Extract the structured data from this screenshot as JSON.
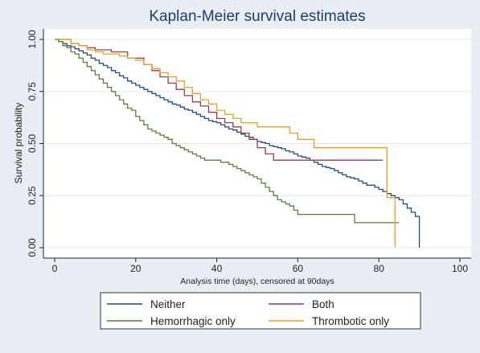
{
  "chart_data": {
    "type": "line",
    "step": true,
    "title": "Kaplan-Meier survival estimates",
    "xlabel": "Analysis time (days), censored at 90days",
    "ylabel": "Survival probability",
    "xlim": [
      0,
      100
    ],
    "ylim": [
      0,
      1
    ],
    "xticks": [
      0,
      20,
      40,
      60,
      80,
      100
    ],
    "xtick_labels": [
      "0",
      "20",
      "40",
      "60",
      "80",
      "100"
    ],
    "yticks": [
      0,
      0.25,
      0.5,
      0.75,
      1
    ],
    "ytick_labels": [
      "0.00",
      "0.25",
      "0.50",
      "0.75",
      "1.00"
    ],
    "grid": true,
    "legend_position": "bottom",
    "series": [
      {
        "name": "Neither",
        "color": "#1f4e79",
        "x": [
          0,
          1,
          2,
          3,
          4,
          5,
          6,
          7,
          8,
          9,
          10,
          11,
          12,
          13,
          14,
          15,
          16,
          17,
          18,
          19,
          20,
          21,
          22,
          23,
          24,
          25,
          26,
          27,
          28,
          29,
          30,
          31,
          32,
          33,
          34,
          35,
          36,
          37,
          38,
          39,
          40,
          41,
          42,
          43,
          44,
          45,
          46,
          47,
          48,
          49,
          50,
          51,
          52,
          53,
          54,
          55,
          56,
          57,
          58,
          59,
          60,
          61,
          62,
          63,
          64,
          65,
          66,
          67,
          68,
          69,
          70,
          71,
          72,
          73,
          74,
          75,
          76,
          77,
          78,
          79,
          80,
          81,
          82,
          83,
          84,
          85,
          86,
          87,
          88,
          89,
          90
        ],
        "y": [
          1.0,
          0.99,
          0.98,
          0.97,
          0.965,
          0.955,
          0.945,
          0.935,
          0.925,
          0.91,
          0.9,
          0.885,
          0.875,
          0.865,
          0.85,
          0.84,
          0.825,
          0.815,
          0.8,
          0.79,
          0.78,
          0.77,
          0.76,
          0.75,
          0.74,
          0.73,
          0.72,
          0.71,
          0.7,
          0.69,
          0.685,
          0.675,
          0.665,
          0.66,
          0.65,
          0.64,
          0.63,
          0.62,
          0.61,
          0.605,
          0.6,
          0.59,
          0.58,
          0.57,
          0.565,
          0.555,
          0.545,
          0.535,
          0.53,
          0.52,
          0.51,
          0.505,
          0.5,
          0.49,
          0.485,
          0.48,
          0.475,
          0.465,
          0.46,
          0.45,
          0.44,
          0.435,
          0.43,
          0.42,
          0.41,
          0.4,
          0.39,
          0.385,
          0.38,
          0.37,
          0.36,
          0.35,
          0.34,
          0.335,
          0.33,
          0.32,
          0.31,
          0.3,
          0.3,
          0.29,
          0.28,
          0.27,
          0.26,
          0.25,
          0.24,
          0.23,
          0.21,
          0.19,
          0.17,
          0.15,
          0.0
        ]
      },
      {
        "name": "Both",
        "color": "#9e3a4a",
        "x": [
          0,
          2,
          4,
          6,
          8,
          10,
          12,
          14,
          16,
          18,
          20,
          22,
          24,
          26,
          28,
          30,
          32,
          34,
          36,
          38,
          40,
          42,
          44,
          46,
          48,
          50,
          52,
          54,
          56,
          58,
          60,
          65,
          70,
          75,
          81
        ],
        "y": [
          1.0,
          1.0,
          0.98,
          0.97,
          0.96,
          0.95,
          0.95,
          0.94,
          0.94,
          0.91,
          0.91,
          0.88,
          0.85,
          0.82,
          0.79,
          0.76,
          0.73,
          0.7,
          0.68,
          0.65,
          0.62,
          0.6,
          0.58,
          0.55,
          0.52,
          0.48,
          0.45,
          0.42,
          0.42,
          0.42,
          0.42,
          0.42,
          0.42,
          0.42,
          0.42
        ]
      },
      {
        "name": "Hemorrhagic only",
        "color": "#5a7f3a",
        "x": [
          0,
          1,
          2,
          3,
          4,
          5,
          6,
          7,
          8,
          9,
          10,
          11,
          12,
          13,
          14,
          15,
          16,
          17,
          18,
          19,
          20,
          21,
          22,
          23,
          24,
          25,
          26,
          27,
          28,
          29,
          30,
          31,
          32,
          33,
          34,
          35,
          36,
          37,
          38,
          39,
          40,
          41,
          42,
          43,
          44,
          45,
          46,
          47,
          48,
          49,
          50,
          51,
          52,
          53,
          54,
          55,
          56,
          57,
          58,
          59,
          60,
          62,
          64,
          66,
          68,
          70,
          72,
          74,
          76,
          78,
          80,
          82,
          84,
          85
        ],
        "y": [
          1.0,
          0.99,
          0.97,
          0.96,
          0.94,
          0.93,
          0.91,
          0.89,
          0.87,
          0.85,
          0.83,
          0.81,
          0.79,
          0.77,
          0.75,
          0.73,
          0.71,
          0.69,
          0.67,
          0.66,
          0.63,
          0.61,
          0.59,
          0.57,
          0.56,
          0.55,
          0.54,
          0.53,
          0.52,
          0.5,
          0.49,
          0.48,
          0.47,
          0.46,
          0.45,
          0.44,
          0.43,
          0.42,
          0.42,
          0.42,
          0.42,
          0.41,
          0.41,
          0.4,
          0.39,
          0.38,
          0.37,
          0.36,
          0.35,
          0.34,
          0.33,
          0.31,
          0.29,
          0.27,
          0.25,
          0.23,
          0.22,
          0.21,
          0.2,
          0.18,
          0.16,
          0.16,
          0.16,
          0.16,
          0.16,
          0.16,
          0.16,
          0.12,
          0.12,
          0.12,
          0.12,
          0.12,
          0.12,
          0.12
        ]
      },
      {
        "name": "Thrombotic only",
        "color": "#e8a020",
        "x": [
          0,
          2,
          4,
          6,
          8,
          10,
          12,
          14,
          16,
          18,
          20,
          22,
          24,
          26,
          28,
          30,
          32,
          34,
          36,
          38,
          40,
          42,
          44,
          46,
          48,
          50,
          52,
          54,
          56,
          58,
          60,
          62,
          64,
          66,
          68,
          70,
          72,
          74,
          76,
          78,
          80,
          81,
          82,
          83,
          84
        ],
        "y": [
          1.0,
          1.0,
          0.98,
          0.97,
          0.95,
          0.94,
          0.93,
          0.93,
          0.92,
          0.91,
          0.9,
          0.88,
          0.86,
          0.84,
          0.82,
          0.8,
          0.77,
          0.74,
          0.71,
          0.69,
          0.66,
          0.64,
          0.62,
          0.6,
          0.6,
          0.58,
          0.58,
          0.58,
          0.58,
          0.55,
          0.52,
          0.52,
          0.48,
          0.48,
          0.48,
          0.48,
          0.48,
          0.48,
          0.48,
          0.48,
          0.48,
          0.48,
          0.24,
          0.24,
          0.0
        ]
      }
    ]
  }
}
